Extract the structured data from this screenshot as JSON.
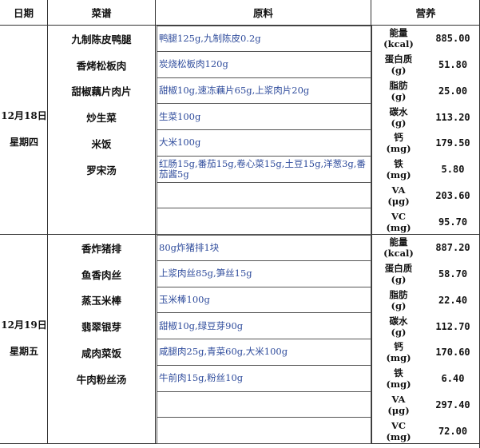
{
  "header": {
    "date": "日期",
    "menu": "菜谱",
    "ingredients": "原料",
    "nutrition": "营养"
  },
  "colors": {
    "ingredient_text": "#2f4c9c",
    "border": "#333333"
  },
  "days": [
    {
      "date": "12月18日",
      "weekday": "星期四",
      "dishes": [
        "九制陈皮鸭腿",
        "香烤松板肉",
        "甜椒藕片肉片",
        "炒生菜",
        "米饭",
        "罗宋汤",
        "",
        ""
      ],
      "ingredients": [
        "鸭腿125g,九制陈皮0.2g",
        "炭烧松板肉120g",
        "甜椒10g,速冻藕片65g,上浆肉片20g",
        "生菜100g",
        "大米100g",
        "红肠15g,番茄15g,卷心菜15g,土豆15g,洋葱3g,番茄酱5g",
        "",
        ""
      ],
      "nutrition": [
        {
          "name": "能量",
          "unit": "(kcal)",
          "value": "885.00"
        },
        {
          "name": "蛋白质",
          "unit": "(g)",
          "value": "51.80"
        },
        {
          "name": "脂肪",
          "unit": "(g)",
          "value": "25.00"
        },
        {
          "name": "碳水",
          "unit": "(g)",
          "value": "113.20"
        },
        {
          "name": "钙",
          "unit": "(mg)",
          "value": "179.50"
        },
        {
          "name": "铁",
          "unit": "(mg)",
          "value": "5.80"
        },
        {
          "name": "VA",
          "unit": "(μg)",
          "value": "203.60"
        },
        {
          "name": "VC",
          "unit": "(mg)",
          "value": "95.70"
        }
      ]
    },
    {
      "date": "12月19日",
      "weekday": "星期五",
      "dishes": [
        "香炸猪排",
        "鱼香肉丝",
        "蒸玉米棒",
        "翡翠银芽",
        "咸肉菜饭",
        "牛肉粉丝汤",
        "",
        ""
      ],
      "ingredients": [
        "80g炸猪排1块",
        "上浆肉丝85g,笋丝15g",
        "玉米棒100g",
        "甜椒10g,绿豆芽90g",
        "咸腿肉25g,青菜60g,大米100g",
        "牛前肉15g,粉丝10g",
        "",
        ""
      ],
      "nutrition": [
        {
          "name": "能量",
          "unit": "(kcal)",
          "value": "887.20"
        },
        {
          "name": "蛋白质",
          "unit": "(g)",
          "value": "58.70"
        },
        {
          "name": "脂肪",
          "unit": "(g)",
          "value": "22.40"
        },
        {
          "name": "碳水",
          "unit": "(g)",
          "value": "112.70"
        },
        {
          "name": "钙",
          "unit": "(mg)",
          "value": "170.60"
        },
        {
          "name": "铁",
          "unit": "(mg)",
          "value": "6.40"
        },
        {
          "name": "VA",
          "unit": "(μg)",
          "value": "297.40"
        },
        {
          "name": "VC",
          "unit": "(mg)",
          "value": "72.00"
        }
      ]
    }
  ]
}
